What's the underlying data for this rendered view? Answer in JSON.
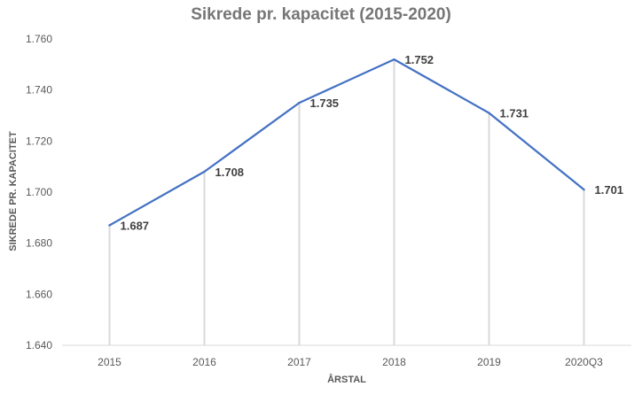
{
  "chart_data": {
    "type": "line",
    "title": "Sikrede pr. kapacitet (2015-2020)",
    "xlabel": "ÅRSTAL",
    "ylabel": "SIKREDE PR. KAPACITET",
    "categories": [
      "2015",
      "2016",
      "2017",
      "2018",
      "2019",
      "2020Q3"
    ],
    "series": [
      {
        "values": [
          1.687,
          1.708,
          1.735,
          1.752,
          1.731,
          1.701
        ],
        "data_labels": [
          "1.687",
          "1.708",
          "1.735",
          "1.752",
          "1.731",
          "1.701"
        ]
      }
    ],
    "ylim": [
      1.64,
      1.76
    ],
    "yticks": [
      1.64,
      1.66,
      1.68,
      1.7,
      1.72,
      1.74,
      1.76
    ],
    "ytick_labels": [
      "1.640",
      "1.660",
      "1.680",
      "1.700",
      "1.720",
      "1.740",
      "1.760"
    ],
    "drop_lines": true,
    "grid": false,
    "legend": "none",
    "colors": {
      "line": "#4472c4",
      "drop_line": "#d9d9d9",
      "axis": "#d9d9d9"
    }
  }
}
